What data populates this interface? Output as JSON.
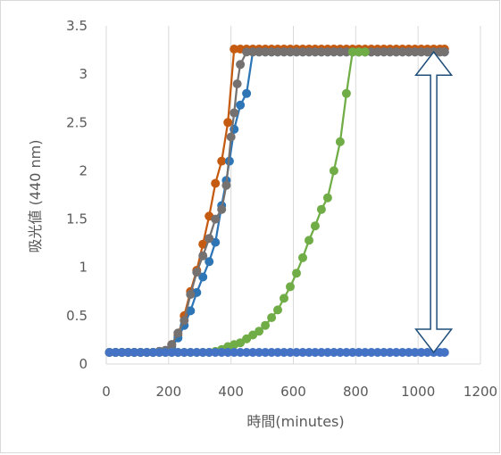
{
  "chart_data": {
    "type": "scatter",
    "title": "",
    "xlabel": "時間(minutes)",
    "ylabel": "吸光値 (440 nm)",
    "xlim": [
      0,
      1200
    ],
    "ylim": [
      0,
      3.5
    ],
    "xticks": [
      0,
      200,
      400,
      600,
      800,
      1000,
      1200
    ],
    "yticks": [
      0,
      0.5,
      1,
      1.5,
      2,
      2.5,
      3,
      3.5
    ],
    "grid": "vertical",
    "legend": "none",
    "annotations": [
      "double-headed arrow at x≈1050 spanning y 0.12 to 3.23"
    ],
    "series": [
      {
        "color": "#c55a11",
        "x": [
          10,
          30,
          50,
          70,
          90,
          110,
          130,
          150,
          170,
          190,
          210,
          230,
          250,
          270,
          290,
          310,
          330,
          350,
          370,
          390,
          410,
          430,
          450,
          470,
          490,
          510,
          530,
          550,
          570,
          590,
          610,
          630,
          650,
          670,
          690,
          710,
          730,
          750,
          770,
          790,
          810,
          830,
          850,
          870,
          890,
          910,
          930,
          950,
          970,
          990,
          1010,
          1030,
          1050,
          1070,
          1085
        ],
        "y": [
          0.12,
          0.12,
          0.12,
          0.12,
          0.12,
          0.12,
          0.12,
          0.12,
          0.13,
          0.14,
          0.2,
          0.3,
          0.5,
          0.75,
          0.97,
          1.24,
          1.53,
          1.87,
          2.1,
          2.5,
          3.26,
          3.26,
          3.26,
          3.26,
          3.26,
          3.26,
          3.26,
          3.26,
          3.26,
          3.26,
          3.26,
          3.26,
          3.26,
          3.26,
          3.26,
          3.26,
          3.26,
          3.26,
          3.26,
          3.26,
          3.26,
          3.26,
          3.26,
          3.26,
          3.26,
          3.26,
          3.26,
          3.26,
          3.26,
          3.26,
          3.26,
          3.26,
          3.26,
          3.26,
          3.26
        ]
      },
      {
        "color": "#2e75b6",
        "x": [
          10,
          30,
          50,
          70,
          90,
          110,
          130,
          150,
          170,
          190,
          210,
          230,
          250,
          270,
          290,
          310,
          330,
          350,
          370,
          385,
          395,
          410,
          430,
          450,
          470,
          490,
          510,
          530,
          550,
          570,
          590,
          610,
          630,
          650,
          670,
          690,
          710,
          730,
          750,
          770,
          790,
          810,
          830,
          850,
          870,
          890,
          910,
          930,
          950,
          970,
          990,
          1010,
          1030,
          1050,
          1070,
          1085
        ],
        "y": [
          0.12,
          0.12,
          0.12,
          0.12,
          0.12,
          0.12,
          0.12,
          0.12,
          0.13,
          0.14,
          0.18,
          0.27,
          0.4,
          0.55,
          0.74,
          0.9,
          1.06,
          1.26,
          1.64,
          1.9,
          2.1,
          2.43,
          2.68,
          2.8,
          3.23,
          3.23,
          3.23,
          3.23,
          3.23,
          3.23,
          3.23,
          3.23,
          3.23,
          3.23,
          3.23,
          3.23,
          3.23,
          3.23,
          3.23,
          3.23,
          3.23,
          3.23,
          3.23,
          3.23,
          3.23,
          3.23,
          3.23,
          3.23,
          3.23,
          3.23,
          3.23,
          3.23,
          3.23,
          3.23,
          3.23,
          3.23
        ]
      },
      {
        "color": "#767171",
        "x": [
          10,
          30,
          50,
          70,
          90,
          110,
          130,
          150,
          170,
          190,
          210,
          230,
          250,
          270,
          290,
          310,
          330,
          350,
          370,
          385,
          400,
          410,
          420,
          430,
          450,
          470,
          490,
          510,
          530,
          550,
          570,
          590,
          610,
          630,
          650,
          670,
          690,
          710,
          730,
          750,
          770,
          790,
          810,
          830,
          850,
          870,
          890,
          910,
          930,
          950,
          970,
          990,
          1010,
          1030,
          1050,
          1070,
          1085
        ],
        "y": [
          0.12,
          0.12,
          0.12,
          0.12,
          0.12,
          0.12,
          0.12,
          0.12,
          0.13,
          0.14,
          0.2,
          0.32,
          0.45,
          0.72,
          0.95,
          1.12,
          1.3,
          1.5,
          1.6,
          1.85,
          2.35,
          2.6,
          2.9,
          3.1,
          3.23,
          3.23,
          3.23,
          3.23,
          3.23,
          3.23,
          3.23,
          3.23,
          3.23,
          3.23,
          3.23,
          3.23,
          3.23,
          3.23,
          3.23,
          3.23,
          3.23,
          3.23,
          3.23,
          3.23,
          3.23,
          3.23,
          3.23,
          3.23,
          3.23,
          3.23,
          3.23,
          3.23,
          3.23,
          3.23,
          3.23,
          3.23,
          3.23
        ]
      },
      {
        "color": "#70ad47",
        "x": [
          10,
          30,
          50,
          70,
          90,
          110,
          130,
          150,
          170,
          190,
          210,
          230,
          250,
          270,
          290,
          310,
          330,
          350,
          370,
          390,
          410,
          430,
          450,
          470,
          490,
          510,
          530,
          550,
          570,
          590,
          610,
          630,
          650,
          670,
          690,
          710,
          730,
          750,
          770,
          790,
          810,
          830
        ],
        "y": [
          0.12,
          0.12,
          0.12,
          0.12,
          0.12,
          0.12,
          0.12,
          0.12,
          0.12,
          0.12,
          0.12,
          0.12,
          0.12,
          0.12,
          0.12,
          0.12,
          0.12,
          0.13,
          0.15,
          0.18,
          0.2,
          0.22,
          0.26,
          0.3,
          0.34,
          0.4,
          0.48,
          0.56,
          0.68,
          0.8,
          0.94,
          1.1,
          1.28,
          1.43,
          1.6,
          1.72,
          2.0,
          2.3,
          2.8,
          3.23,
          3.23,
          3.23
        ]
      },
      {
        "color": "#4472c4",
        "x": [
          10,
          30,
          50,
          70,
          90,
          110,
          130,
          150,
          170,
          190,
          210,
          230,
          250,
          270,
          290,
          310,
          330,
          350,
          370,
          390,
          410,
          430,
          450,
          470,
          490,
          510,
          530,
          550,
          570,
          590,
          610,
          630,
          650,
          670,
          690,
          710,
          730,
          750,
          770,
          790,
          810,
          830,
          850,
          870,
          890,
          910,
          930,
          950,
          970,
          990,
          1010,
          1030,
          1050,
          1070,
          1085
        ],
        "y": [
          0.12,
          0.12,
          0.12,
          0.12,
          0.12,
          0.12,
          0.12,
          0.12,
          0.12,
          0.12,
          0.12,
          0.12,
          0.12,
          0.12,
          0.12,
          0.12,
          0.12,
          0.12,
          0.12,
          0.12,
          0.12,
          0.12,
          0.12,
          0.12,
          0.12,
          0.12,
          0.12,
          0.12,
          0.12,
          0.12,
          0.12,
          0.12,
          0.12,
          0.12,
          0.12,
          0.12,
          0.12,
          0.12,
          0.12,
          0.12,
          0.12,
          0.12,
          0.12,
          0.12,
          0.12,
          0.12,
          0.12,
          0.12,
          0.12,
          0.12,
          0.12,
          0.12,
          0.12,
          0.12,
          0.12
        ]
      }
    ]
  },
  "colors": {
    "grid": "#d9d9d9",
    "tick_text": "#595959",
    "arrow": "#1f4e79"
  }
}
